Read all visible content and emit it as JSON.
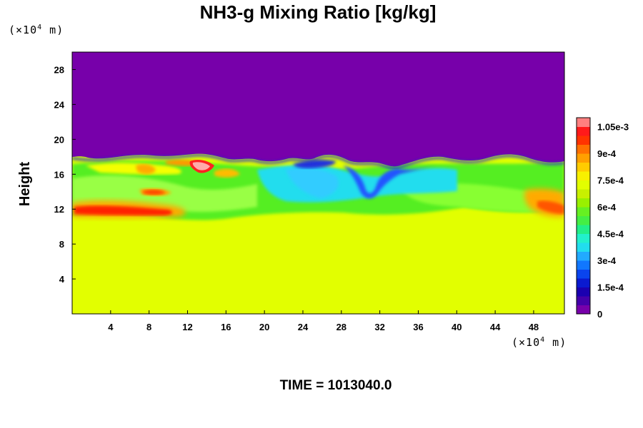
{
  "title": "NH3-g Mixing Ratio [kg/kg]",
  "time_label": "TIME = 1013040.0",
  "y_unit": "(×10",
  "y_unit_exp": "4",
  "y_unit_tail": " m)",
  "x_unit": "(×10",
  "x_unit_exp": "4",
  "x_unit_tail": " m)",
  "colors": {
    "stratosphere": "#7700aa",
    "lower_layer": "#e2ff00"
  },
  "chart_data": {
    "type": "heatmap",
    "ylabel": "Height",
    "x_ticks": [
      "4",
      "8",
      "12",
      "16",
      "20",
      "24",
      "28",
      "32",
      "36",
      "40",
      "44",
      "48"
    ],
    "x_tick_values": [
      4,
      8,
      12,
      16,
      20,
      24,
      28,
      32,
      36,
      40,
      44,
      48
    ],
    "y_ticks": [
      "4",
      "8",
      "12",
      "16",
      "20",
      "24",
      "28"
    ],
    "y_tick_values": [
      4,
      8,
      12,
      16,
      20,
      24,
      28
    ],
    "xlim": [
      0,
      51.2
    ],
    "ylim": [
      0,
      30
    ],
    "colorbar": {
      "labels": [
        "0",
        "1.5e-4",
        "3e-4",
        "4.5e-4",
        "6e-4",
        "7.5e-4",
        "9e-4",
        "1.05e-3"
      ],
      "label_values": [
        0,
        0.00015,
        0.0003,
        0.00045,
        0.0006,
        0.00075,
        0.0009,
        0.00105
      ],
      "range": [
        0,
        0.0011
      ],
      "levels": 22
    },
    "field_regions": [
      {
        "region": "above ~17.5",
        "value": 0
      },
      {
        "region": "below ~11",
        "value": 0.00078
      },
      {
        "region": "band 11-17.5",
        "value_range": [
          0.0002,
          0.0011
        ]
      }
    ]
  }
}
